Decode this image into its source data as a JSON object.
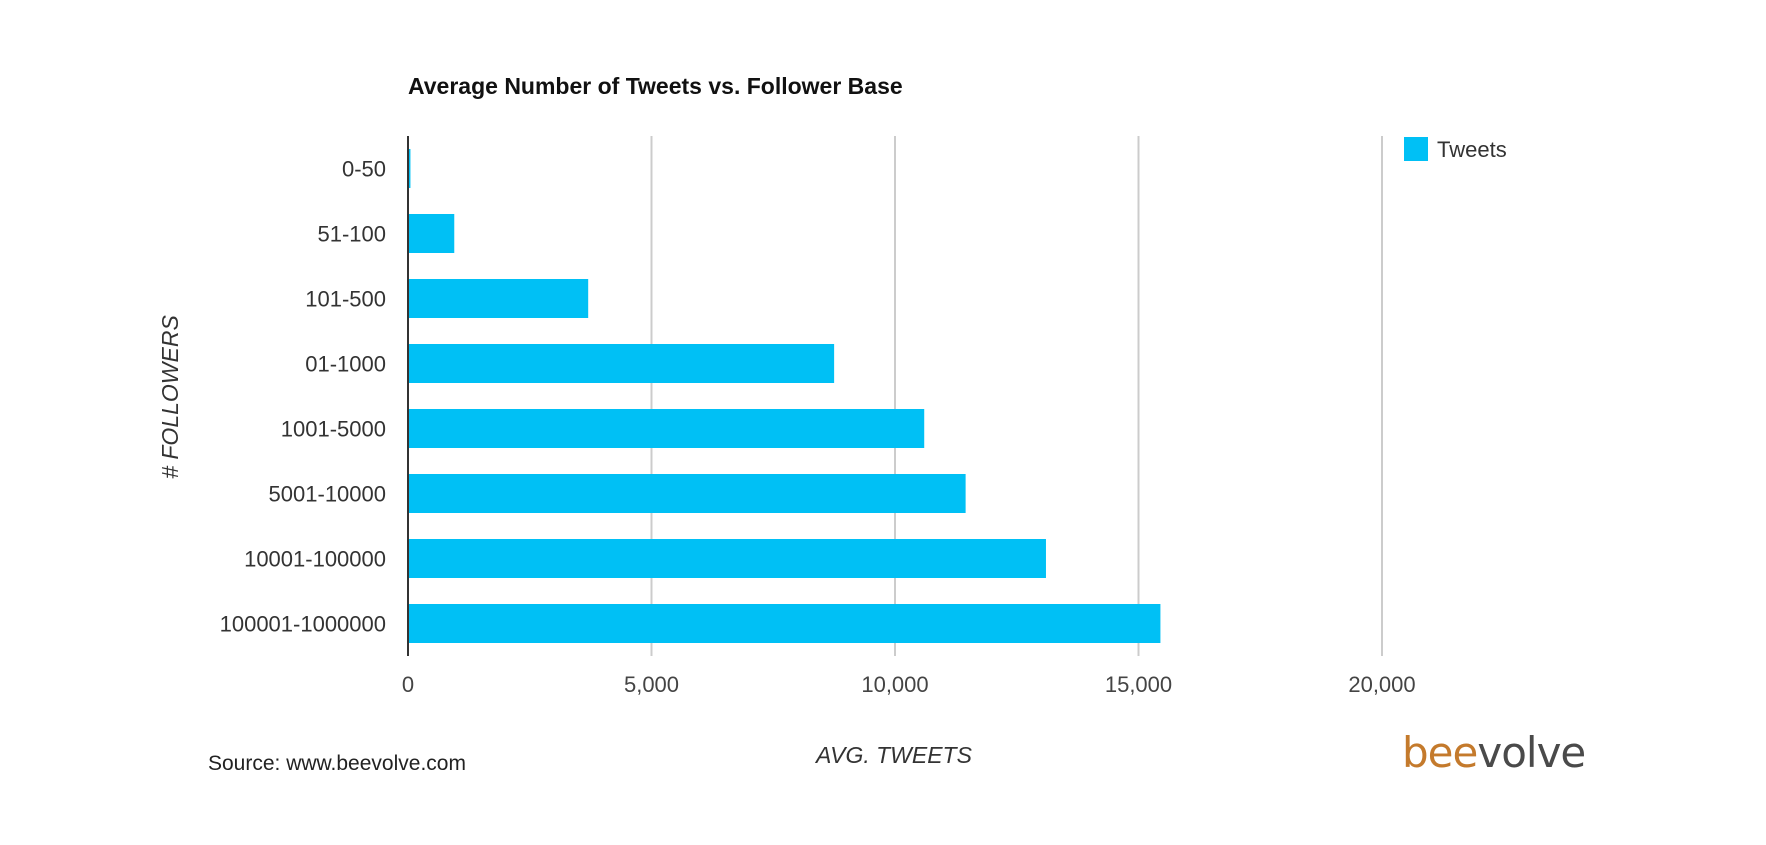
{
  "chart_data": {
    "type": "bar",
    "orientation": "horizontal",
    "title": "Average Number of Tweets vs. Follower Base",
    "xlabel": "AVG. TWEETS",
    "ylabel": "# FOLLOWERS",
    "categories": [
      "0-50",
      "51-100",
      "101-500",
      "01-1000",
      "1001-5000",
      "5001-10000",
      "10001-100000",
      "100001-1000000"
    ],
    "series": [
      {
        "name": "Tweets",
        "values": [
          50,
          950,
          3700,
          8750,
          10600,
          11450,
          13100,
          15450
        ]
      }
    ],
    "xlim": [
      0,
      20000
    ],
    "xticks": [
      0,
      5000,
      10000,
      15000,
      20000
    ],
    "xtick_labels": [
      "0",
      "5,000",
      "10,000",
      "15,000",
      "20,000"
    ],
    "grid": "vertical",
    "legend": "top-right",
    "color": "#00c0f5"
  },
  "footer": {
    "source": "Source: www.beevolve.com",
    "logo_part1": "bee",
    "logo_part2": "volve",
    "logo_color1": "#c47a2c",
    "logo_color2": "#4a4a4a"
  }
}
